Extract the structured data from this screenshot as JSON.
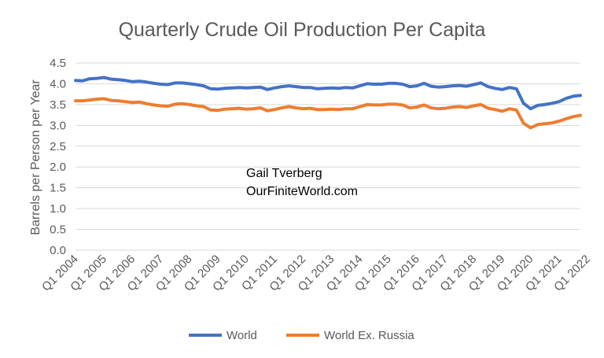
{
  "chart_data": {
    "type": "line",
    "title": "Quarterly Crude Oil Production Per Capita",
    "ylabel": "Barrels per Person per Year",
    "xlabel": "",
    "ylim": [
      0,
      4.5
    ],
    "yticks": [
      "0.0",
      "0.5",
      "1.0",
      "1.5",
      "2.0",
      "2.5",
      "3.0",
      "3.5",
      "4.0",
      "4.5"
    ],
    "grid": true,
    "legend_position": "bottom",
    "x_ticks": [
      "Q1 2004",
      "Q1 2005",
      "Q1 2006",
      "Q1 2007",
      "Q1 2008",
      "Q1 2009",
      "Q1 2010",
      "Q1 2011",
      "Q1 2012",
      "Q1 2013",
      "Q1 2014",
      "Q1 2015",
      "Q1 2016",
      "Q1 2017",
      "Q1 2018",
      "Q1 2019",
      "Q1 2020",
      "Q1 2021",
      "Q1 2022"
    ],
    "x_start": "Q1 2004",
    "annotations": [
      "Gail Tverberg",
      "OurFiniteWorld.com"
    ],
    "series": [
      {
        "name": "World",
        "color": "#4472c4",
        "values": [
          4.08,
          4.07,
          4.12,
          4.13,
          4.15,
          4.11,
          4.1,
          4.08,
          4.05,
          4.06,
          4.04,
          4.01,
          3.99,
          3.98,
          4.02,
          4.02,
          4.0,
          3.98,
          3.95,
          3.88,
          3.87,
          3.89,
          3.9,
          3.91,
          3.9,
          3.91,
          3.92,
          3.86,
          3.9,
          3.93,
          3.95,
          3.93,
          3.91,
          3.91,
          3.88,
          3.89,
          3.9,
          3.89,
          3.91,
          3.9,
          3.95,
          4.0,
          3.99,
          3.99,
          4.01,
          4.01,
          3.99,
          3.93,
          3.95,
          4.01,
          3.94,
          3.92,
          3.93,
          3.95,
          3.96,
          3.94,
          3.98,
          4.02,
          3.93,
          3.89,
          3.86,
          3.91,
          3.88,
          3.53,
          3.4,
          3.48,
          3.5,
          3.53,
          3.57,
          3.65,
          3.7,
          3.72
        ]
      },
      {
        "name": "World Ex. Russia",
        "color": "#ed7d31",
        "values": [
          3.59,
          3.59,
          3.61,
          3.63,
          3.64,
          3.6,
          3.59,
          3.57,
          3.55,
          3.56,
          3.52,
          3.49,
          3.47,
          3.46,
          3.51,
          3.52,
          3.5,
          3.47,
          3.45,
          3.37,
          3.36,
          3.39,
          3.4,
          3.41,
          3.39,
          3.4,
          3.42,
          3.35,
          3.38,
          3.42,
          3.45,
          3.42,
          3.4,
          3.41,
          3.38,
          3.38,
          3.39,
          3.38,
          3.4,
          3.4,
          3.45,
          3.5,
          3.49,
          3.49,
          3.51,
          3.51,
          3.49,
          3.42,
          3.44,
          3.49,
          3.42,
          3.4,
          3.41,
          3.44,
          3.45,
          3.43,
          3.47,
          3.5,
          3.41,
          3.38,
          3.34,
          3.4,
          3.37,
          3.05,
          2.94,
          3.02,
          3.04,
          3.06,
          3.1,
          3.16,
          3.21,
          3.24
        ]
      }
    ]
  }
}
